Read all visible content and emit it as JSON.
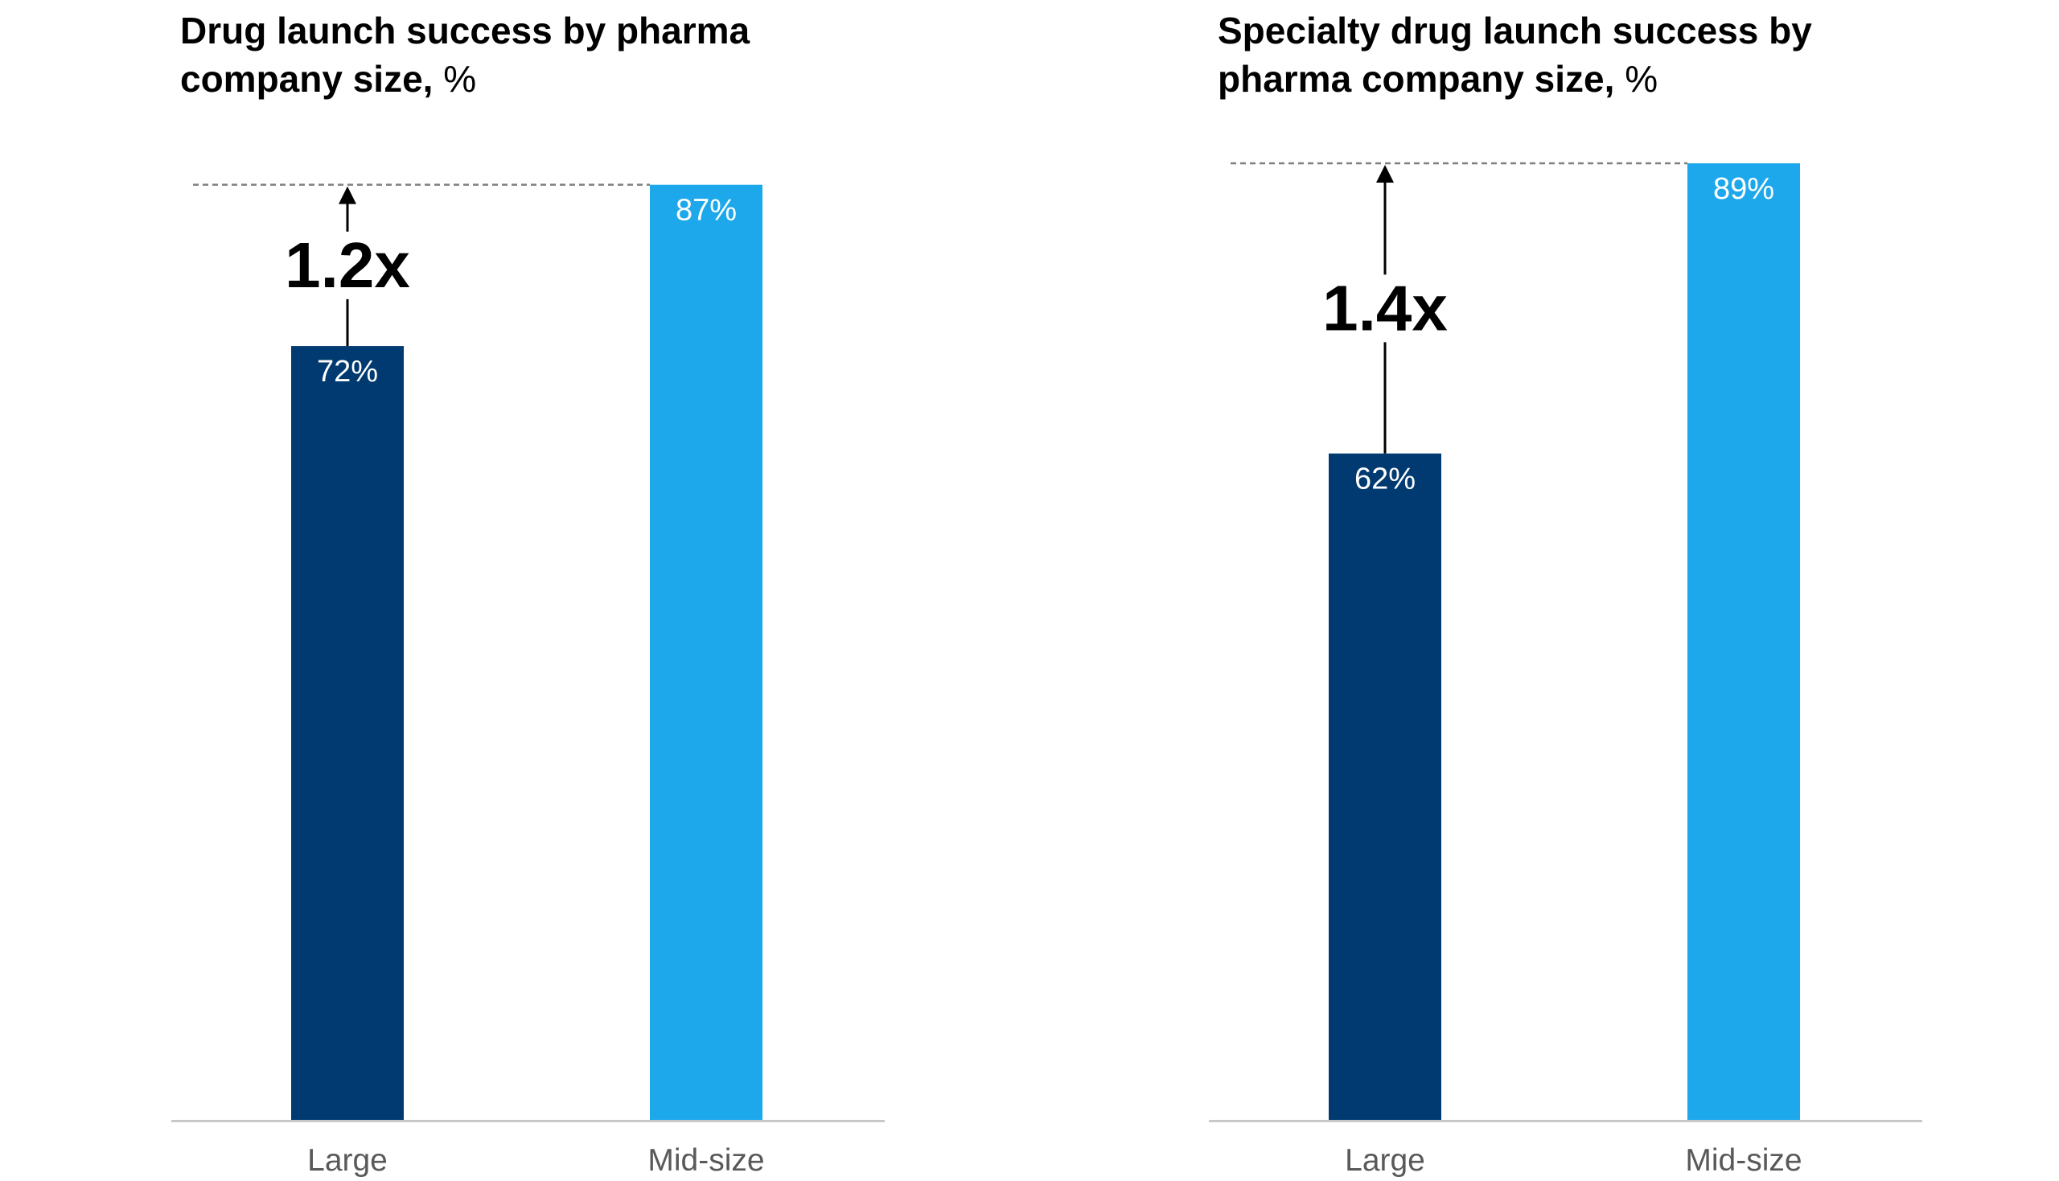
{
  "chart_data": [
    {
      "type": "bar",
      "title": "Drug launch success by pharma company size,",
      "title_unit": "%",
      "categories": [
        "Large",
        "Mid-size"
      ],
      "values": [
        72,
        87
      ],
      "value_labels": [
        "72%",
        "87%"
      ],
      "bar_colors": [
        "#003a70",
        "#1ea8ec"
      ],
      "ylim": [
        0,
        100
      ],
      "grid": false,
      "legend": "none",
      "annotation": {
        "text": "1.2x",
        "from_category": "Large",
        "to_value": 87
      }
    },
    {
      "type": "bar",
      "title": "Specialty drug launch success by pharma company size,",
      "title_unit": "%",
      "categories": [
        "Large",
        "Mid-size"
      ],
      "values": [
        62,
        89
      ],
      "value_labels": [
        "62%",
        "89%"
      ],
      "bar_colors": [
        "#003a70",
        "#1ea8ec"
      ],
      "ylim": [
        0,
        100
      ],
      "grid": false,
      "legend": "none",
      "annotation": {
        "text": "1.4x",
        "from_category": "Large",
        "to_value": 89
      }
    }
  ],
  "colors": {
    "axis": "#c8c8c8",
    "reference_line": "#7f7f7f",
    "arrow": "#000000",
    "value_label_text": "#ffffff",
    "category_label_text": "#595959"
  }
}
